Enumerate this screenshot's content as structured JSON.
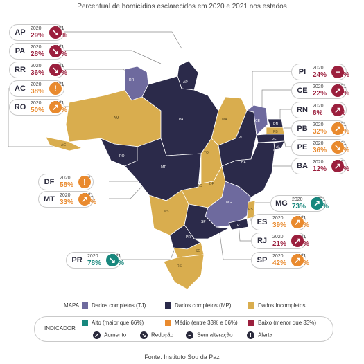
{
  "title": "Percentual de homicídios esclarecidos em 2020 e 2021 nos estados",
  "year_a": "2020",
  "year_b": "2021",
  "colors": {
    "completos_tj": "#6e6a9e",
    "completos_mp": "#2b2a4a",
    "incompletos": "#d9ad4e",
    "alto": "#17877d",
    "medio": "#e98a2e",
    "baixo": "#9b1f3d"
  },
  "states": [
    {
      "code": "AP",
      "v2020": "29%",
      "v2021": "24%",
      "icon": "reducao",
      "color": "baixo"
    },
    {
      "code": "PA",
      "v2020": "28%",
      "v2021": "27%",
      "icon": "reducao",
      "color": "baixo"
    },
    {
      "code": "RR",
      "v2020": "36%",
      "v2021": "29%",
      "icon": "reducao",
      "color": "baixo"
    },
    {
      "code": "AC",
      "v2020": "38%",
      "v2021": "-",
      "icon": "alerta",
      "color": "medio"
    },
    {
      "code": "RO",
      "v2020": "50%",
      "v2021": "65%",
      "icon": "aumento",
      "color": "medio"
    },
    {
      "code": "DF",
      "v2020": "58%",
      "v2021": "-",
      "icon": "alerta",
      "color": "medio"
    },
    {
      "code": "MT",
      "v2020": "33%",
      "v2021": "61%",
      "icon": "aumento",
      "color": "medio"
    },
    {
      "code": "PR",
      "v2020": "78%",
      "v2021": "76%",
      "icon": "reducao",
      "color": "alto"
    },
    {
      "code": "PI",
      "v2020": "24%",
      "v2021": "24%",
      "icon": "sem",
      "color": "baixo"
    },
    {
      "code": "CE",
      "v2020": "22%",
      "v2021": "27%",
      "icon": "aumento",
      "color": "baixo"
    },
    {
      "code": "RN",
      "v2020": "8%",
      "v2021": "9%",
      "icon": "aumento",
      "color": "baixo"
    },
    {
      "code": "PB",
      "v2020": "32%",
      "v2021": "36%",
      "icon": "aumento",
      "color": "medio"
    },
    {
      "code": "PE",
      "v2020": "36%",
      "v2021": "34%",
      "icon": "reducao",
      "color": "medio"
    },
    {
      "code": "BA",
      "v2020": "12%",
      "v2021": "15%",
      "icon": "aumento",
      "color": "baixo"
    },
    {
      "code": "MG",
      "v2020": "73%",
      "v2021": "76%",
      "icon": "aumento",
      "color": "alto"
    },
    {
      "code": "ES",
      "v2020": "39%",
      "v2021": "42%",
      "icon": "aumento",
      "color": "medio"
    },
    {
      "code": "RJ",
      "v2020": "21%",
      "v2021": "23%",
      "icon": "aumento",
      "color": "baixo"
    },
    {
      "code": "SP",
      "v2020": "42%",
      "v2021": "47%",
      "icon": "aumento",
      "color": "medio"
    }
  ],
  "map_labels": [
    "RR",
    "AP",
    "AM",
    "PA",
    "MA",
    "CE",
    "RN",
    "PB",
    "PE",
    "AL",
    "SE",
    "PI",
    "TO",
    "BA",
    "RO",
    "MT",
    "DF",
    "GO",
    "MG",
    "ES",
    "MS",
    "SP",
    "RJ",
    "PR",
    "SC",
    "RS",
    "AC"
  ],
  "legend": {
    "mapa_title": "MAPA",
    "completos_tj": "Dados completos (TJ)",
    "completos_mp": "Dados completos (MP)",
    "incompletos": "Dados Incompletos",
    "indicador_title": "INDICADOR",
    "alto": "Alto (maior que 66%)",
    "medio": "Médio (entre 33% e 66%)",
    "baixo": "Baixo (menor que 33%)",
    "aumento": "Aumento",
    "reducao": "Redução",
    "sem": "Sem alteração",
    "alerta": "Alerta"
  },
  "source": "Fonte: Instituto Sou da Paz"
}
